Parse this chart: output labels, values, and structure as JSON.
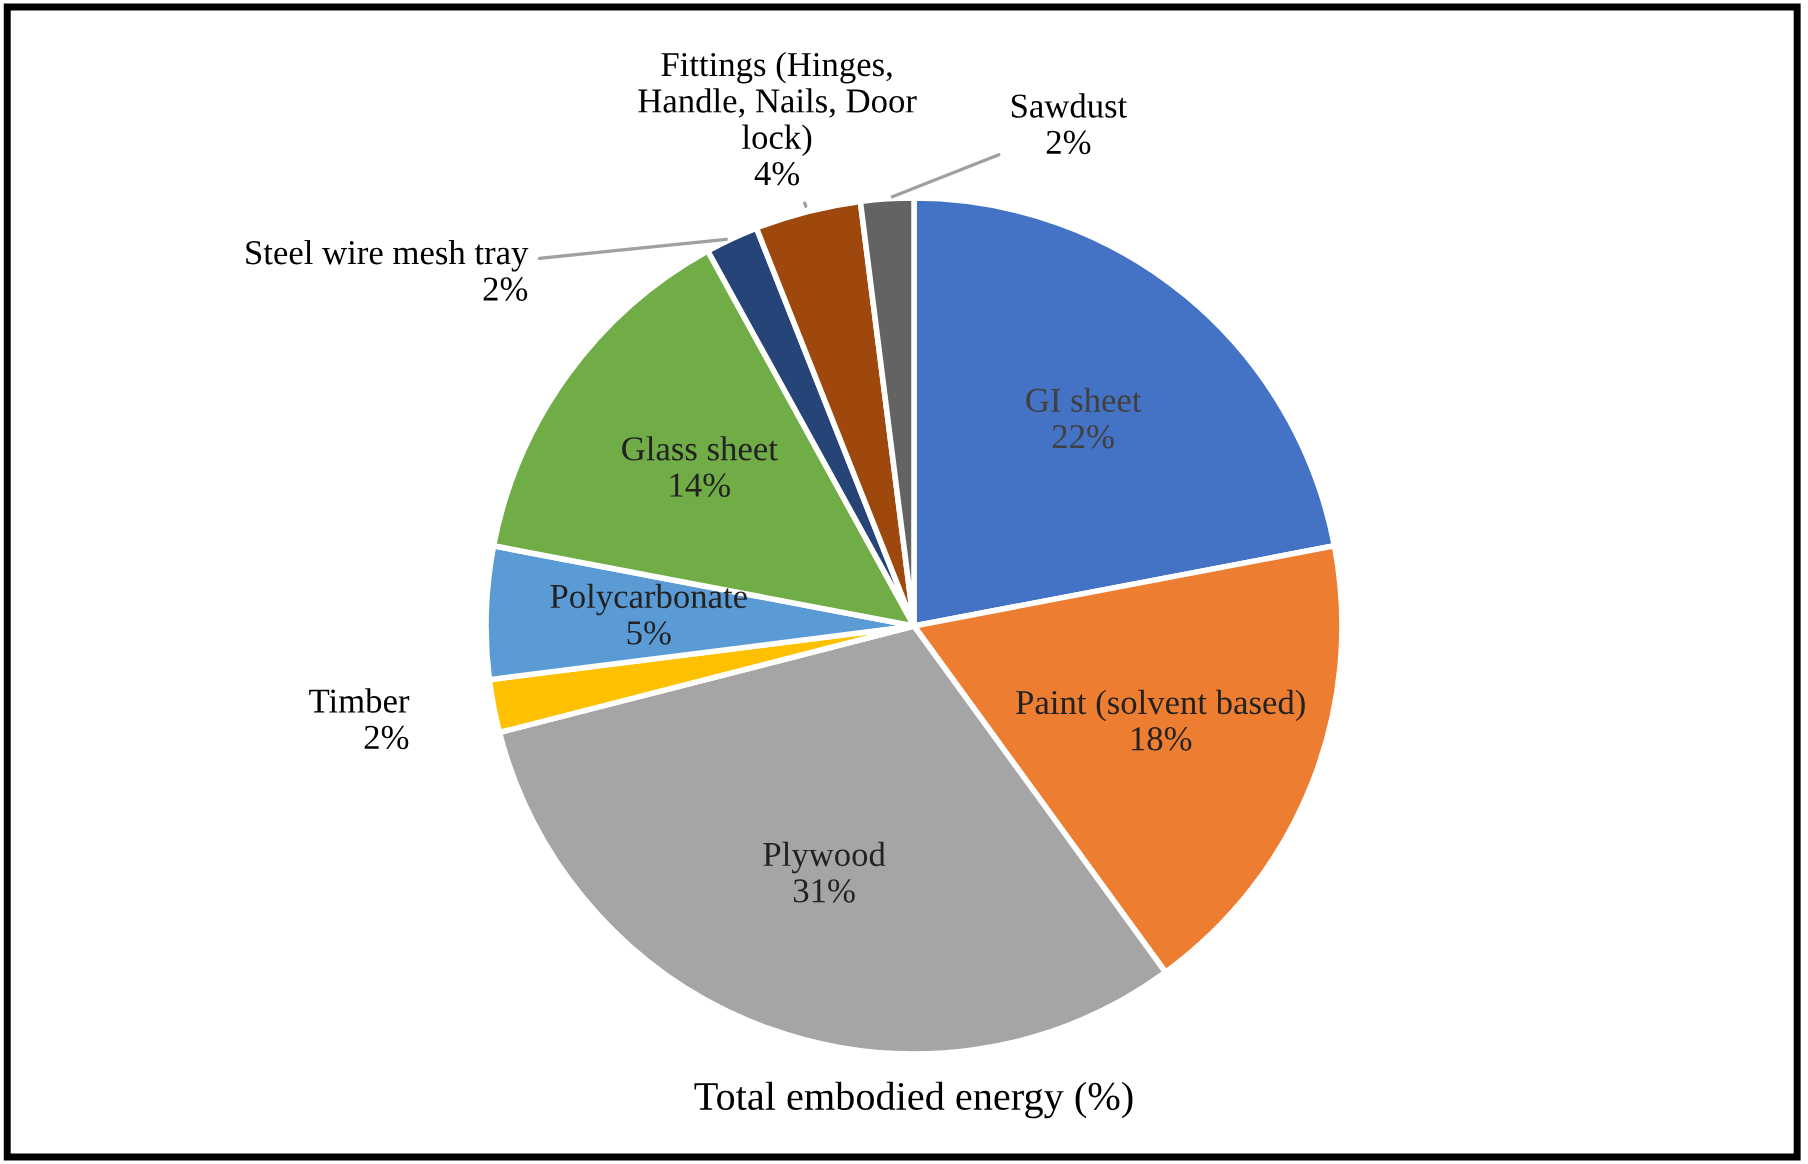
{
  "chart_data": {
    "type": "pie",
    "title": "Total embodied energy (%)",
    "categories": [
      "GI sheet",
      "Paint (solvent based)",
      "Plywood",
      "Timber",
      "Polycarbonate",
      "Glass sheet",
      "Steel wire mesh tray",
      "Fittings (Hinges,\nHandle, Nails, Door\nlock)",
      "Sawdust"
    ],
    "values": [
      22,
      18,
      31,
      2,
      5,
      14,
      2,
      4,
      2
    ],
    "colors": [
      "#4472c4",
      "#ed7d31",
      "#a5a5a5",
      "#ffc000",
      "#5b9bd5",
      "#70ad47",
      "#264478",
      "#9e480e",
      "#636363"
    ],
    "value_labels": [
      "22%",
      "18%",
      "31%",
      "2%",
      "5%",
      "14%",
      "2%",
      "4%",
      "2%"
    ],
    "legend": false
  }
}
